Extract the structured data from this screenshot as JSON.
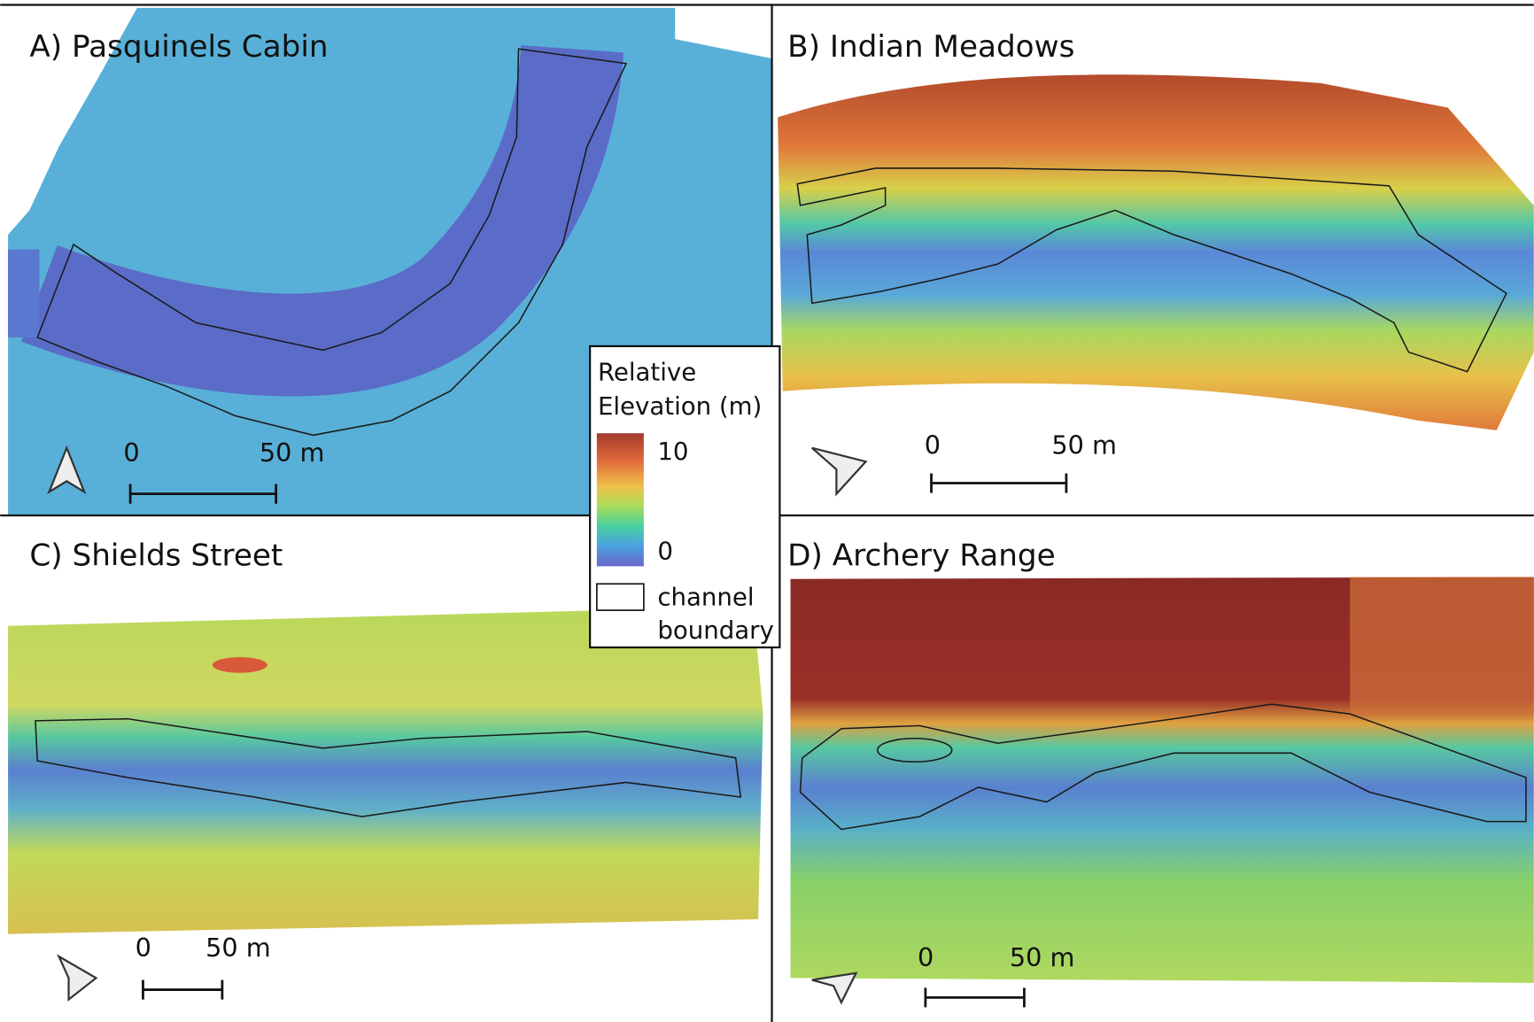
{
  "panels": [
    {
      "title": "A) Pasquinels Cabin",
      "scale_bar": {
        "start": "0",
        "end": "50 m"
      }
    },
    {
      "title": "B) Indian Meadows",
      "scale_bar": {
        "start": "0",
        "end": "50 m"
      }
    },
    {
      "title": "C) Shields Street",
      "scale_bar": {
        "start": "0",
        "end": "50 m"
      }
    },
    {
      "title": "D) Archery Range",
      "scale_bar": {
        "start": "0",
        "end": "50 m"
      }
    }
  ],
  "legend": {
    "title": [
      "Relative",
      "Elevation (m)"
    ],
    "ticks": [
      10,
      0
    ],
    "boundary_label": [
      "channel",
      "boundary"
    ]
  }
}
